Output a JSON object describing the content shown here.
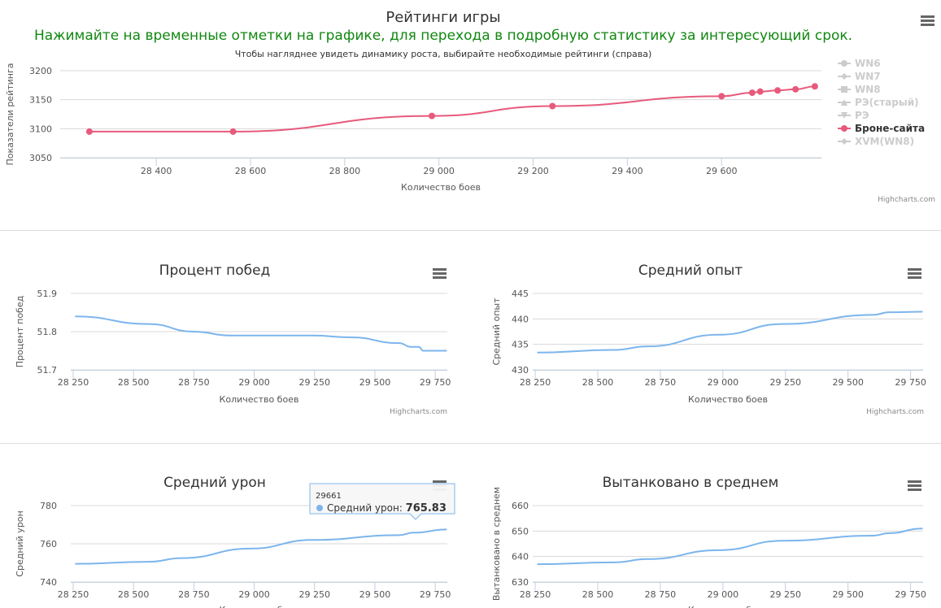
{
  "main_chart": {
    "title": "Рейтинги игры",
    "notice": "Нажимайте на временные отметки на графике, для перехода в подробную статистику за интересующий срок.",
    "subtitle": "Чтобы нагляднее увидеть динамику роста, выбирайте необходимые рейтинги (справа)",
    "credits": "Highcharts.com",
    "legend": [
      {
        "label": "WN6",
        "active": false,
        "symbol": "circle"
      },
      {
        "label": "WN7",
        "active": false,
        "symbol": "diamond"
      },
      {
        "label": "WN8",
        "active": false,
        "symbol": "square"
      },
      {
        "label": "РЭ(старый)",
        "active": false,
        "symbol": "triangle"
      },
      {
        "label": "РЭ",
        "active": false,
        "symbol": "triangle-down"
      },
      {
        "label": "Броне-сайта",
        "active": true,
        "symbol": "circle"
      },
      {
        "label": "XVM(WN8)",
        "active": false,
        "symbol": "diamond"
      }
    ]
  },
  "chart_data": [
    {
      "type": "line",
      "title": "Рейтинги игры",
      "xlabel": "Количество боев",
      "ylabel": "Показатели рейтинга",
      "xlim": [
        28196,
        29812
      ],
      "ylim": [
        3050,
        3200
      ],
      "xticks": [
        28400,
        28600,
        28800,
        29000,
        29200,
        29400,
        29600
      ],
      "xtick_labels": [
        "28 400",
        "28 600",
        "28 800",
        "29 000",
        "29 200",
        "29 400",
        "29 600"
      ],
      "yticks": [
        3050,
        3100,
        3150,
        3200
      ],
      "ytick_labels": [
        "3050",
        "3100",
        "3150",
        "3200"
      ],
      "series": [
        {
          "name": "Броне-сайта",
          "color": "#e75a7c",
          "markers": true,
          "x": [
            28258,
            28563,
            28985,
            29241,
            29600,
            29665,
            29682,
            29719,
            29757,
            29798
          ],
          "y": [
            3095,
            3095,
            3122,
            3139,
            3156,
            3162,
            3164,
            3166,
            3168,
            3173
          ]
        }
      ]
    },
    {
      "type": "line",
      "title": "Процент побед",
      "xlabel": "Количество боев",
      "ylabel": "Процент побед",
      "xlim": [
        28240,
        29800
      ],
      "ylim": [
        51.7,
        51.9
      ],
      "xticks": [
        28250,
        28500,
        28750,
        29000,
        29250,
        29500,
        29750
      ],
      "xtick_labels": [
        "28 250",
        "28 500",
        "28 750",
        "29 000",
        "29 250",
        "29 500",
        "29 750"
      ],
      "yticks": [
        51.7,
        51.8,
        51.9
      ],
      "ytick_labels": [
        "51.7",
        "51.8",
        "51.9"
      ],
      "credits": "Highcharts.com",
      "series": [
        {
          "name": "Процент побед",
          "color": "#7cb5ec",
          "markers": false,
          "x": [
            28258,
            28563,
            28750,
            28900,
            29000,
            29241,
            29400,
            29600,
            29650,
            29682,
            29700,
            29798
          ],
          "y": [
            51.84,
            51.82,
            51.8,
            51.79,
            51.79,
            51.79,
            51.785,
            51.77,
            51.76,
            51.76,
            51.75,
            51.75
          ]
        }
      ]
    },
    {
      "type": "line",
      "title": "Средний опыт",
      "xlabel": "Количество боев",
      "ylabel": "Средний опыт",
      "xlim": [
        28240,
        29800
      ],
      "ylim": [
        430,
        445
      ],
      "xticks": [
        28250,
        28500,
        28750,
        29000,
        29250,
        29500,
        29750
      ],
      "xtick_labels": [
        "28 250",
        "28 500",
        "28 750",
        "29 000",
        "29 250",
        "29 500",
        "29 750"
      ],
      "yticks": [
        430,
        435,
        440,
        445
      ],
      "ytick_labels": [
        "430",
        "435",
        "440",
        "445"
      ],
      "credits": "Highcharts.com",
      "series": [
        {
          "name": "Средний опыт",
          "color": "#7cb5ec",
          "markers": false,
          "x": [
            28258,
            28563,
            28700,
            28985,
            29241,
            29600,
            29665,
            29798
          ],
          "y": [
            433.4,
            433.9,
            434.6,
            436.9,
            439.0,
            440.8,
            441.3,
            441.4
          ]
        }
      ]
    },
    {
      "type": "line",
      "title": "Средний урон",
      "xlabel": "Количество боев",
      "ylabel": "Средний урон",
      "xlim": [
        28240,
        29800
      ],
      "ylim": [
        740,
        780
      ],
      "xticks": [
        28250,
        28500,
        28750,
        29000,
        29250,
        29500,
        29750
      ],
      "xtick_labels": [
        "28 250",
        "28 500",
        "28 750",
        "29 000",
        "29 250",
        "29 500",
        "29 750"
      ],
      "yticks": [
        740,
        760,
        780
      ],
      "ytick_labels": [
        "740",
        "760",
        "780"
      ],
      "tooltip": {
        "x_label": "29661",
        "series": "Средний урон",
        "value": "765.83"
      },
      "series": [
        {
          "name": "Средний урон",
          "color": "#7cb5ec",
          "markers": false,
          "x": [
            28258,
            28563,
            28700,
            28985,
            29241,
            29600,
            29661,
            29798
          ],
          "y": [
            749.5,
            750.6,
            752.5,
            757.5,
            762,
            764.5,
            765.83,
            767.5
          ]
        }
      ]
    },
    {
      "type": "line",
      "title": "Вытанковано в среднем",
      "xlabel": "Количество боев",
      "ylabel": "Вытанковано в среднем",
      "xlim": [
        28240,
        29800
      ],
      "ylim": [
        630,
        660
      ],
      "xticks": [
        28250,
        28500,
        28750,
        29000,
        29250,
        29500,
        29750
      ],
      "xtick_labels": [
        "28 250",
        "28 500",
        "28 750",
        "29 000",
        "29 250",
        "29 500",
        "29 750"
      ],
      "yticks": [
        630,
        640,
        650,
        660
      ],
      "ytick_labels": [
        "630",
        "640",
        "650",
        "660"
      ],
      "series": [
        {
          "name": "Вытанковано в среднем",
          "color": "#7cb5ec",
          "markers": false,
          "x": [
            28258,
            28563,
            28700,
            28985,
            29241,
            29600,
            29665,
            29798
          ],
          "y": [
            637,
            637.7,
            639,
            642.5,
            646.2,
            648.2,
            649.2,
            651
          ]
        }
      ]
    }
  ]
}
